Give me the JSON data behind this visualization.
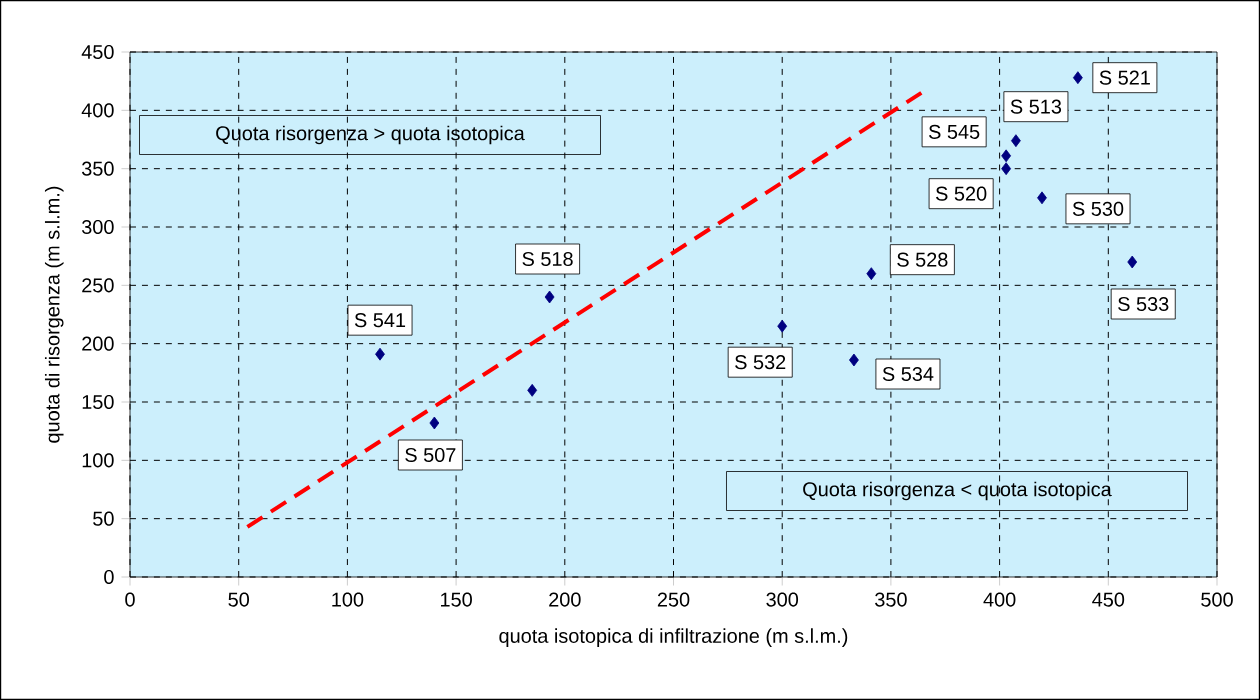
{
  "chart_data": {
    "type": "scatter",
    "xlabel": "quota isotopica di infiltrazione (m s.l.m.)",
    "ylabel": "quota di risorgenza  (m s.l.m.)",
    "xlim": [
      0,
      500
    ],
    "ylim": [
      0,
      450
    ],
    "xticks": [
      0,
      50,
      100,
      150,
      200,
      250,
      300,
      350,
      400,
      450,
      500
    ],
    "yticks": [
      0,
      50,
      100,
      150,
      200,
      250,
      300,
      350,
      400,
      450
    ],
    "grid": true,
    "marker": "diamond",
    "series": [
      {
        "color": "#000080",
        "x": [
          115,
          140,
          185,
          193,
          300,
          333,
          341,
          403,
          403,
          407.5,
          419.5,
          436,
          461
        ],
        "values": [
          191,
          132,
          160,
          240,
          215,
          186,
          260,
          350,
          361,
          374,
          325,
          428,
          270
        ]
      },
      {
        "type": "line",
        "color": "#ff0000",
        "line_style": "dashed",
        "marker": "none",
        "x": [
          54,
          364
        ],
        "values": [
          43,
          415
        ]
      }
    ],
    "annotations": [
      "Quota risorgenza > quota isotopica",
      "Quota risorgenza < quota isotopica",
      {
        "text": "S 541",
        "x": 115,
        "y": 191
      },
      {
        "text": "S 507",
        "x": 140,
        "y": 132
      },
      {
        "text": "S 518",
        "x": 193,
        "y": 240
      },
      {
        "text": "S 532",
        "x": 300,
        "y": 215
      },
      {
        "text": "S 534",
        "x": 333,
        "y": 186
      },
      {
        "text": "S 528",
        "x": 341,
        "y": 260
      },
      {
        "text": "S 520",
        "x": 403,
        "y": 350
      },
      {
        "text": "S 545",
        "x": 403,
        "y": 361
      },
      {
        "text": "S 513",
        "x": 407.5,
        "y": 374
      },
      {
        "text": "S 530",
        "x": 419.5,
        "y": 325
      },
      {
        "text": "S 521",
        "x": 436,
        "y": 428
      },
      {
        "text": "S 533",
        "x": 461,
        "y": 270
      }
    ]
  }
}
